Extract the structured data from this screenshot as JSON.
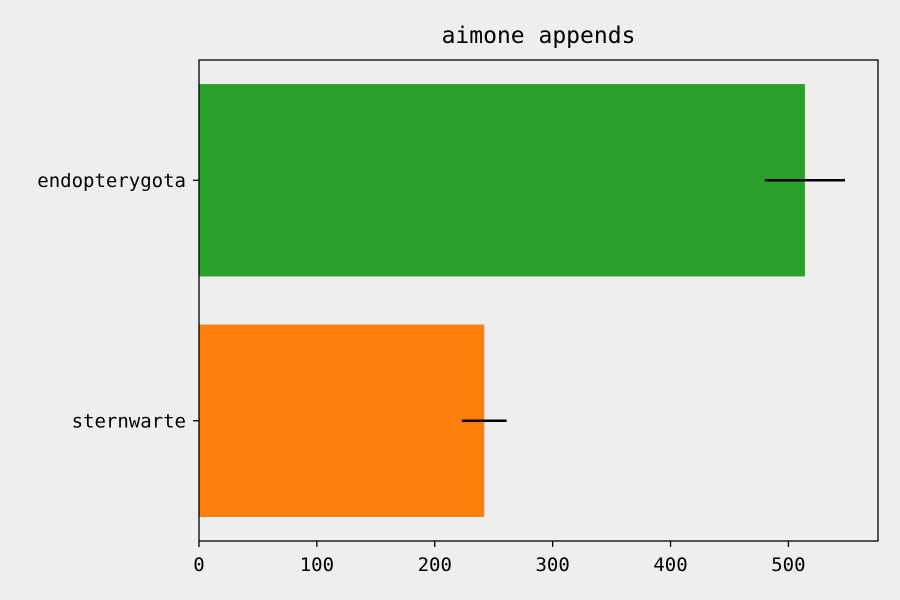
{
  "chart_data": {
    "type": "bar",
    "orientation": "horizontal",
    "title": "aimone appends",
    "xlabel": "",
    "ylabel": "",
    "categories": [
      "sternwarte",
      "endopterygota"
    ],
    "values": [
      242,
      514
    ],
    "errors": [
      19,
      34
    ],
    "colors": [
      "#ff7f0e",
      "#2ca02c"
    ],
    "xlim": [
      0,
      576
    ],
    "xticks": [
      0,
      100,
      200,
      300,
      400,
      500
    ],
    "grid": false,
    "legend": false,
    "background": "#eeeeee",
    "axis_color": "#000000",
    "error_color": "#000000"
  }
}
